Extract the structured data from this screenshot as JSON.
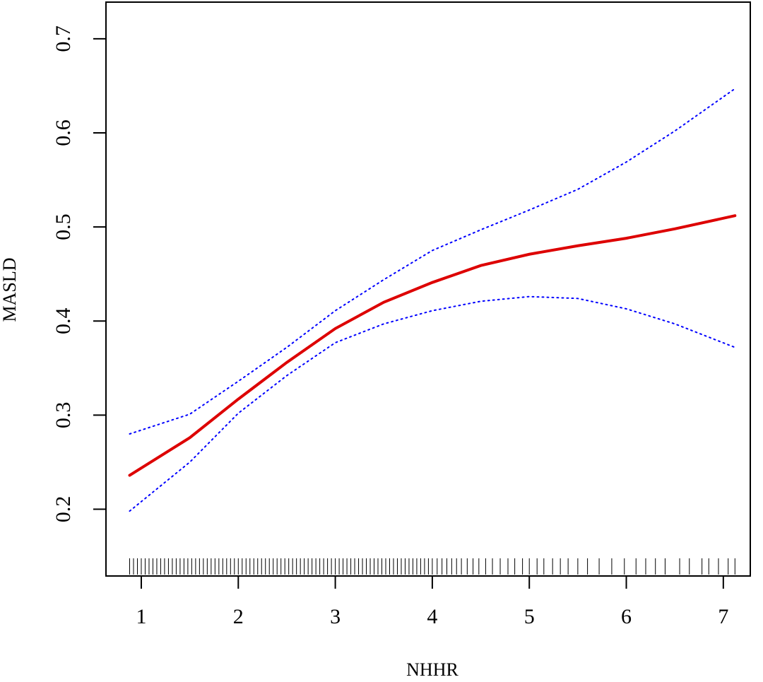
{
  "chart_data": {
    "type": "line",
    "x_label": "NHHR",
    "y_label": "MASLD",
    "xlim": [
      0.636,
      7.278
    ],
    "ylim": [
      0.129,
      0.739
    ],
    "xticks": [
      1,
      2,
      3,
      4,
      5,
      6,
      7
    ],
    "yticks": [
      0.2,
      0.3,
      0.4,
      0.5,
      0.6,
      0.7
    ],
    "x": [
      0.88,
      1.5,
      2,
      2.5,
      3,
      3.5,
      4,
      4.5,
      5,
      5.5,
      6,
      6.5,
      7.12
    ],
    "series": [
      {
        "name": "fit",
        "color": "#dd0000",
        "style": "solid",
        "values": [
          0.236,
          0.276,
          0.317,
          0.356,
          0.392,
          0.42,
          0.441,
          0.459,
          0.471,
          0.48,
          0.488,
          0.498,
          0.512
        ]
      },
      {
        "name": "upper",
        "color": "#0000ff",
        "style": "dotted",
        "values": [
          0.28,
          0.301,
          0.336,
          0.372,
          0.411,
          0.444,
          0.475,
          0.497,
          0.518,
          0.54,
          0.569,
          0.602,
          0.647
        ]
      },
      {
        "name": "lower",
        "color": "#0000ff",
        "style": "dotted",
        "values": [
          0.198,
          0.25,
          0.302,
          0.342,
          0.377,
          0.397,
          0.411,
          0.421,
          0.426,
          0.424,
          0.413,
          0.397,
          0.372
        ]
      }
    ],
    "rug": [
      0.88,
      0.92,
      0.96,
      1.0,
      1.04,
      1.08,
      1.12,
      1.16,
      1.2,
      1.24,
      1.28,
      1.32,
      1.36,
      1.4,
      1.44,
      1.48,
      1.52,
      1.56,
      1.6,
      1.64,
      1.68,
      1.72,
      1.76,
      1.8,
      1.84,
      1.88,
      1.92,
      1.96,
      2.0,
      2.04,
      2.08,
      2.12,
      2.16,
      2.2,
      2.24,
      2.28,
      2.32,
      2.36,
      2.4,
      2.44,
      2.48,
      2.52,
      2.56,
      2.6,
      2.64,
      2.68,
      2.72,
      2.76,
      2.8,
      2.84,
      2.88,
      2.92,
      2.96,
      3.0,
      3.04,
      3.08,
      3.12,
      3.16,
      3.2,
      3.24,
      3.28,
      3.32,
      3.36,
      3.4,
      3.44,
      3.48,
      3.52,
      3.56,
      3.6,
      3.64,
      3.68,
      3.72,
      3.76,
      3.8,
      3.84,
      3.88,
      3.92,
      3.96,
      4.0,
      4.05,
      4.1,
      4.15,
      4.2,
      4.25,
      4.3,
      4.36,
      4.42,
      4.48,
      4.55,
      4.62,
      4.7,
      4.78,
      4.85,
      4.93,
      5.0,
      5.08,
      5.15,
      5.24,
      5.32,
      5.4,
      5.5,
      5.6,
      5.72,
      5.85,
      5.98,
      6.1,
      6.2,
      6.3,
      6.4,
      6.55,
      6.65,
      6.78,
      6.85,
      6.95,
      7.05,
      7.12
    ]
  }
}
